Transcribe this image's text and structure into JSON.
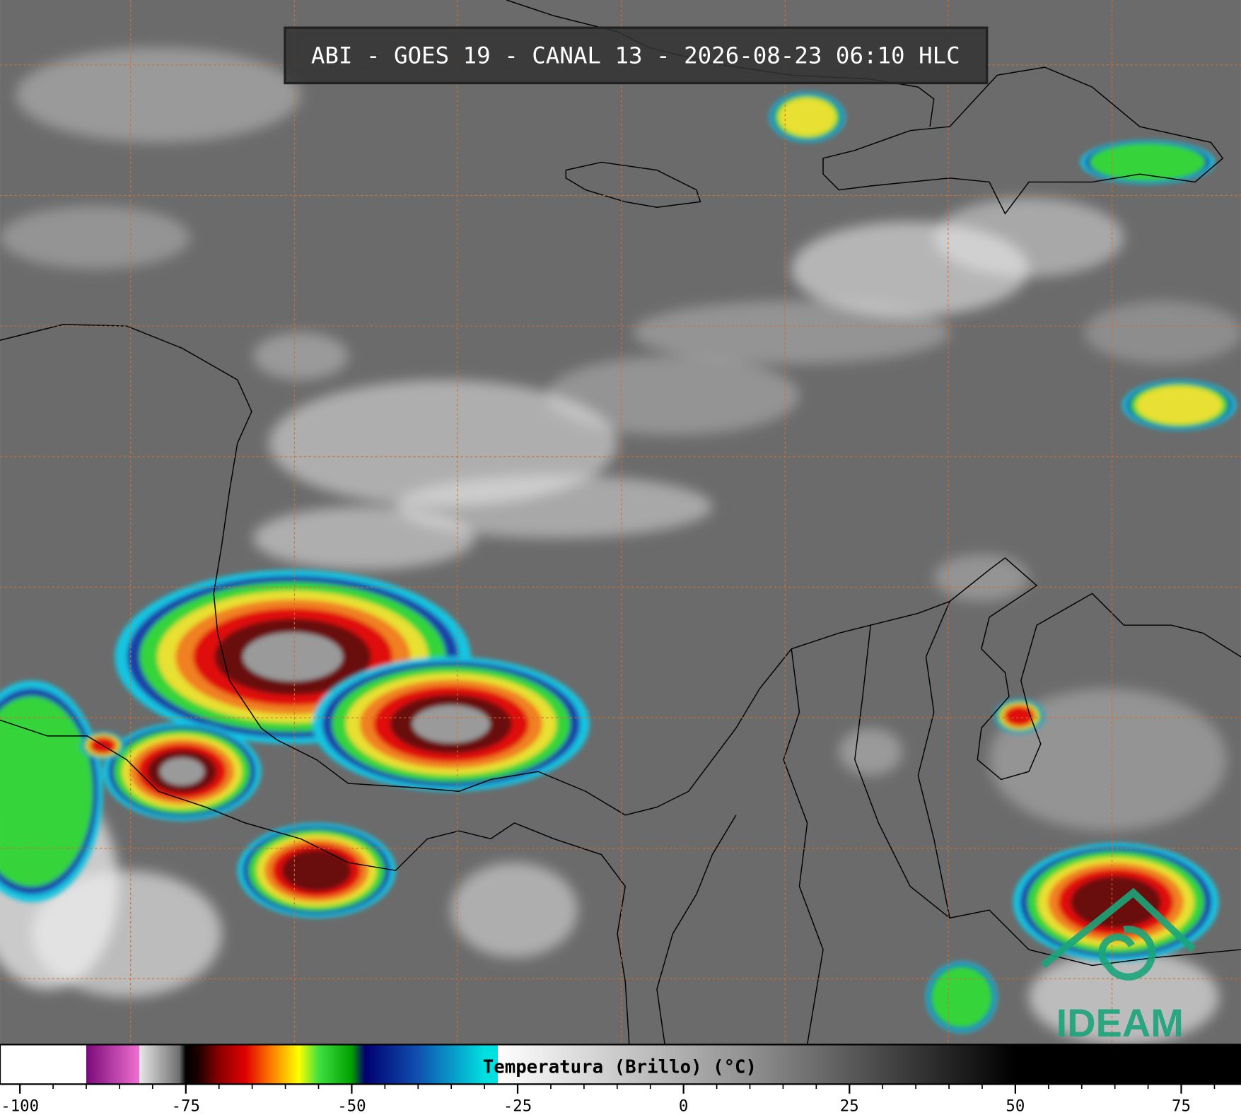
{
  "header": {
    "title": "ABI - GOES 19 - CANAL 13 - 2026-08-23 06:10 HLC"
  },
  "colorbar": {
    "label": "Temperatura (Brillo) (°C)",
    "range": [
      -103,
      84
    ],
    "ticks": [
      -100,
      -75,
      -50,
      -25,
      0,
      25,
      50,
      75
    ],
    "minor_ticks": [
      -95,
      -90,
      -85,
      -80,
      -70,
      -65,
      -60,
      -55,
      -45,
      -40,
      -35,
      -30,
      -20,
      -15,
      -10,
      -5,
      5,
      10,
      15,
      20,
      30,
      35,
      40,
      45,
      55,
      60,
      65,
      70,
      80
    ],
    "color_stops": [
      {
        "value": -103,
        "color": "#ffffff"
      },
      {
        "value": -90,
        "color": "#ffffff"
      },
      {
        "value": -90,
        "color": "#7a0a7a"
      },
      {
        "value": -82,
        "color": "#f070d0"
      },
      {
        "value": -82,
        "color": "#e6e6e6"
      },
      {
        "value": -76,
        "color": "#707070"
      },
      {
        "value": -75,
        "color": "#000000"
      },
      {
        "value": -73,
        "color": "#200000"
      },
      {
        "value": -70,
        "color": "#8a0000"
      },
      {
        "value": -66,
        "color": "#e00000"
      },
      {
        "value": -62,
        "color": "#ff8000"
      },
      {
        "value": -58,
        "color": "#ffff00"
      },
      {
        "value": -55,
        "color": "#40e040"
      },
      {
        "value": -50,
        "color": "#00a000"
      },
      {
        "value": -48,
        "color": "#000070"
      },
      {
        "value": -40,
        "color": "#1050b0"
      },
      {
        "value": -30,
        "color": "#00e0e0"
      },
      {
        "value": -28,
        "color": "#00e0e0"
      },
      {
        "value": -28,
        "color": "#ffffff"
      },
      {
        "value": 10,
        "color": "#909090"
      },
      {
        "value": 50,
        "color": "#000000"
      },
      {
        "value": 84,
        "color": "#000000"
      }
    ]
  },
  "logo": {
    "text": "IDEAM"
  }
}
